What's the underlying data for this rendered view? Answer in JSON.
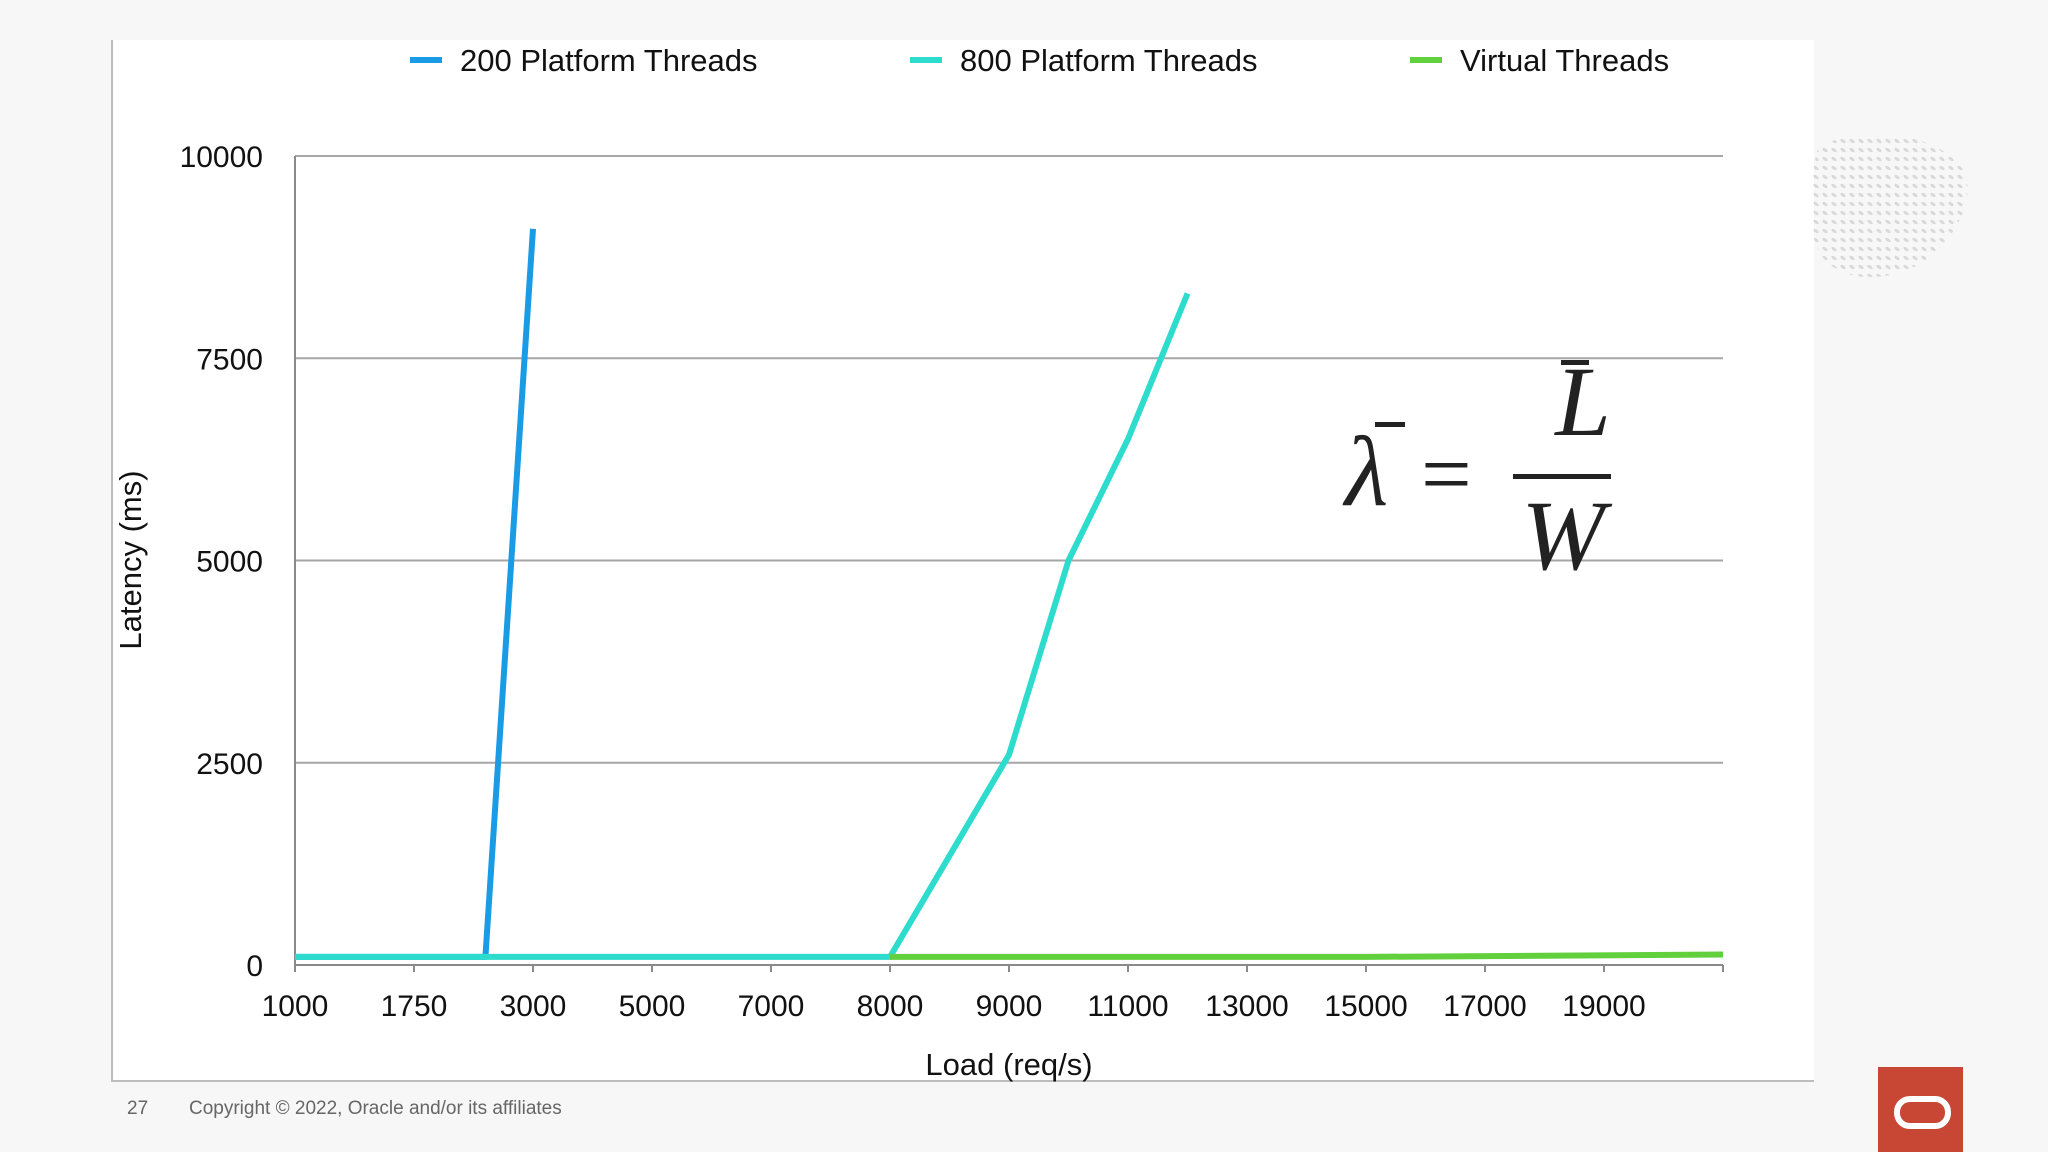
{
  "slide": {
    "page_number": "27",
    "copyright": "Copyright © 2022, Oracle and/or its affiliates"
  },
  "formula": {
    "lhs": "λ",
    "eq": "=",
    "numerator": "L",
    "denominator": "W"
  },
  "brand": {
    "logo_icon": "oracle-logo-icon",
    "logo_color": "#c74634"
  },
  "chart_data": {
    "type": "line",
    "xlabel": "Load (req/s)",
    "ylabel": "Latency (ms)",
    "x_axis_scale": "categorical",
    "categories": [
      "1000",
      "1750",
      "3000",
      "5000",
      "7000",
      "8000",
      "9000",
      "11000",
      "13000",
      "15000",
      "17000",
      "19000"
    ],
    "y_ticks": [
      "0",
      "2500",
      "5000",
      "7500",
      "10000"
    ],
    "ylim": [
      0,
      10000
    ],
    "grid": true,
    "legend_position": "top",
    "series": [
      {
        "name": "200 Platform Threads",
        "color": "#1a9be6",
        "points": [
          {
            "x": 1000,
            "y": 100
          },
          {
            "x": 2500,
            "y": 100
          },
          {
            "x": 3000,
            "y": 9100
          }
        ]
      },
      {
        "name": "800 Platform Threads",
        "color": "#2edccd",
        "points": [
          {
            "x": 1000,
            "y": 100
          },
          {
            "x": 8000,
            "y": 100
          },
          {
            "x": 9000,
            "y": 2600
          },
          {
            "x": 10000,
            "y": 5000
          },
          {
            "x": 11000,
            "y": 6500
          },
          {
            "x": 12000,
            "y": 8300
          }
        ]
      },
      {
        "name": "Virtual Threads",
        "color": "#62cf3c",
        "points": [
          {
            "x": 8000,
            "y": 100
          },
          {
            "x": 15000,
            "y": 100
          },
          {
            "x": 21000,
            "y": 130
          }
        ]
      }
    ]
  }
}
